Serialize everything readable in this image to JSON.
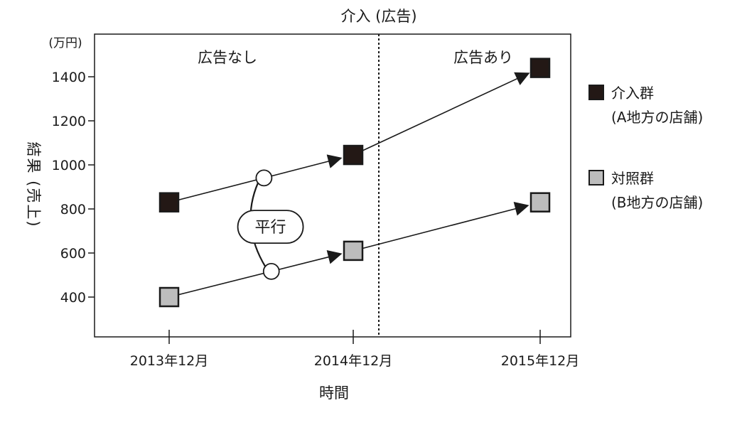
{
  "chart_data": {
    "type": "line",
    "title": "介入 (広告)",
    "xlabel": "時間",
    "ylabel": "結果 (売上)",
    "yunit": "(万円)",
    "categories": [
      "2013年12月",
      "2014年12月",
      "2015年12月"
    ],
    "yticks": [
      400,
      600,
      800,
      1000,
      1200,
      1400
    ],
    "ylim": [
      200,
      1520
    ],
    "series": [
      {
        "name": "介入群",
        "sublabel": "(A地方の店舗)",
        "values": [
          830,
          1045,
          1440
        ],
        "color": "#231815"
      },
      {
        "name": "対照群",
        "sublabel": "(B地方の店舗)",
        "values": [
          400,
          610,
          830
        ],
        "color": "#bdbdbd"
      }
    ],
    "region_labels": {
      "before": "広告なし",
      "after": "広告あり"
    },
    "annotation": "平行",
    "intervention_between": [
      1,
      2
    ],
    "grid": false,
    "legend_position": "right"
  }
}
